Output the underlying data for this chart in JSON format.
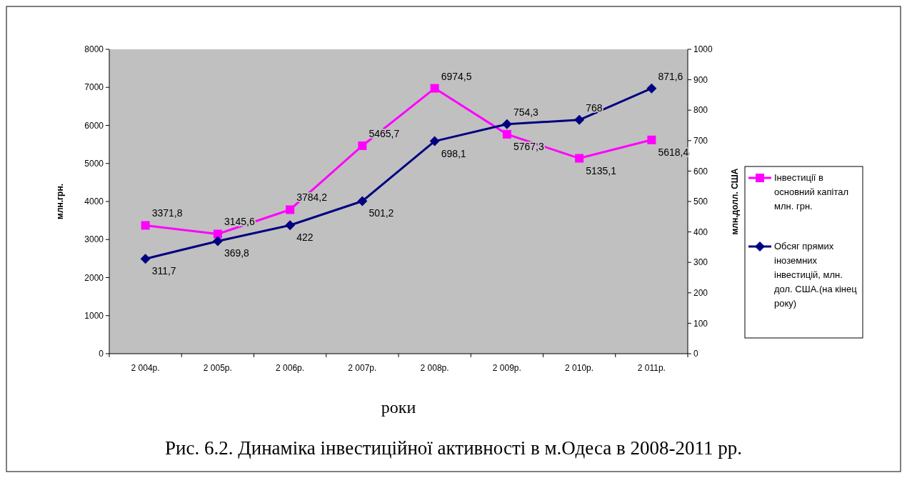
{
  "chart_data": {
    "type": "line",
    "xlabel": "роки",
    "ylabel": "млн.грн.",
    "y2label": "млн.долл. США",
    "categories": [
      "2 004р.",
      "2 005р.",
      "2 006р.",
      "2 007р.",
      "2 008р.",
      "2 009р.",
      "2 010р.",
      "2 011р."
    ],
    "series": [
      {
        "name": "Інвестиції в основний капітал млн. грн.",
        "color": "#ff00ff",
        "marker": "square",
        "values": [
          3371.8,
          3145.6,
          3784.2,
          5465.7,
          6974.5,
          5767.3,
          5135.1,
          5618.4
        ],
        "value_labels": [
          "3371,8",
          "3145,6",
          "3784,2",
          "5465,7",
          "6974,5",
          "5767,3",
          "5135,1",
          "5618,4"
        ]
      },
      {
        "name": "Обсяг прямих іноземних інвестицій,  млн. дол. США.(на кінец року)",
        "color": "#000080",
        "marker": "diamond",
        "axis": "y2",
        "values": [
          311.7,
          369.8,
          422,
          501.2,
          698.1,
          754.3,
          768,
          871.6
        ],
        "value_labels": [
          "311,7",
          "369,8",
          "422",
          "501,2",
          "698,1",
          "754,3",
          "768",
          "871,6"
        ]
      }
    ],
    "ylim": [
      0,
      8000
    ],
    "yticks": [
      0,
      1000,
      2000,
      3000,
      4000,
      5000,
      6000,
      7000,
      8000
    ],
    "y2lim": [
      0,
      1000
    ],
    "y2ticks": [
      0,
      100,
      200,
      300,
      400,
      500,
      600,
      700,
      800,
      900,
      1000
    ],
    "legend": "right",
    "grid": false,
    "line_style": "solid",
    "annotations": [
      "Рис. 6.2. Динаміка інвестиційної активності в м.Одеса в 2008-2011 рр."
    ]
  }
}
